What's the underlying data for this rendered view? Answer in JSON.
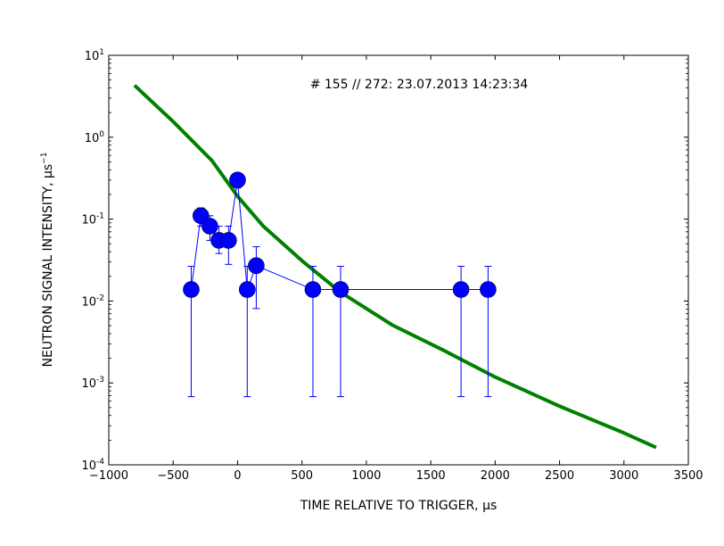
{
  "chart_data": {
    "type": "scatter",
    "annotation": "# 155 // 272: 23.07.2013 14:23:34",
    "xlabel": "TIME RELATIVE TO TRIGGER, μs",
    "ylabel": "NEUTRON SIGNAL INTENSITY, μs",
    "ylabel_superscript": "−1",
    "xlim": [
      -1000,
      3500
    ],
    "ylim": [
      0.0001,
      10
    ],
    "yscale": "log",
    "grid": false,
    "x_ticks": [
      -1000,
      -500,
      0,
      500,
      1000,
      1500,
      2000,
      2500,
      3000,
      3500
    ],
    "x_tick_labels": [
      "−1000",
      "−500",
      "0",
      "500",
      "1000",
      "1500",
      "2000",
      "2500",
      "3000",
      "3500"
    ],
    "y_ticks": [
      {
        "value": 0.0001,
        "base": "10",
        "exp": "-4"
      },
      {
        "value": 0.001,
        "base": "10",
        "exp": "-3"
      },
      {
        "value": 0.01,
        "base": "10",
        "exp": "-2"
      },
      {
        "value": 0.1,
        "base": "10",
        "exp": "-1"
      },
      {
        "value": 1,
        "base": "10",
        "exp": "0"
      },
      {
        "value": 10,
        "base": "10",
        "exp": "1"
      }
    ],
    "series": [
      {
        "kind": "points_with_errorbars",
        "color": "#0000ff",
        "x": [
          -360,
          -285,
          -215,
          -145,
          -70,
          0,
          75,
          145,
          585,
          800,
          1735,
          1945
        ],
        "y": [
          0.0138,
          0.11,
          0.082,
          0.055,
          0.055,
          0.3,
          0.0138,
          0.027,
          0.0138,
          0.0138,
          0.0138,
          0.0138
        ],
        "err_low": [
          0.00068,
          0.082,
          0.055,
          0.038,
          0.028,
          0.24,
          0.00068,
          0.0081,
          0.00068,
          0.00068,
          0.00068,
          0.00068
        ],
        "err_high": [
          0.0265,
          0.137,
          0.11,
          0.082,
          0.082,
          0.36,
          0.0265,
          0.046,
          0.0265,
          0.0265,
          0.0265,
          0.0265
        ]
      },
      {
        "kind": "line",
        "color": "#008000",
        "x": [
          -800,
          -500,
          -200,
          0,
          200,
          500,
          800,
          1200,
          1600,
          2000,
          2500,
          3000,
          3250
        ],
        "y": [
          4.3,
          1.55,
          0.52,
          0.19,
          0.082,
          0.031,
          0.0128,
          0.0051,
          0.0025,
          0.00118,
          0.00052,
          0.000245,
          0.000163
        ]
      }
    ]
  }
}
